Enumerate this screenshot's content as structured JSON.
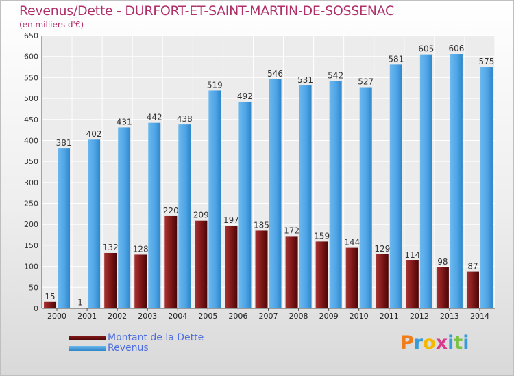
{
  "title": "Revenus/Dette - DURFORT-ET-SAINT-MARTIN-DE-SOSSENAC",
  "subtitle": "(en milliers d'€)",
  "colors": {
    "title": "#b0306a",
    "debt_series": "#7b1616",
    "revenue_series": "#4fa5e6",
    "legend_text": "#4f6fe0"
  },
  "legend": [
    {
      "label": "Montant de la Dette",
      "color": "#6b0f0f"
    },
    {
      "label": "Revenus",
      "color": "#4fa5e6"
    }
  ],
  "logo": {
    "letters": [
      "P",
      "r",
      "o",
      "x",
      "i",
      "t",
      "i"
    ],
    "colors": [
      "#f07d1a",
      "#3a9bd9",
      "#f5b800",
      "#d93b8a",
      "#3a9bd9",
      "#7cc242",
      "#3a9bd9"
    ]
  },
  "chart_data": {
    "type": "bar",
    "categories": [
      "2000",
      "2001",
      "2002",
      "2003",
      "2004",
      "2005",
      "2006",
      "2007",
      "2008",
      "2009",
      "2010",
      "2011",
      "2012",
      "2013",
      "2014"
    ],
    "series": [
      {
        "name": "Montant de la Dette",
        "values": [
          15,
          1,
          132,
          128,
          220,
          209,
          197,
          185,
          172,
          159,
          144,
          129,
          114,
          98,
          87
        ]
      },
      {
        "name": "Revenus",
        "values": [
          381,
          402,
          431,
          442,
          438,
          519,
          492,
          546,
          531,
          542,
          527,
          581,
          605,
          606,
          575
        ]
      }
    ],
    "yticks": [
      "0",
      "50",
      "100",
      "150",
      "200",
      "250",
      "300",
      "350",
      "400",
      "450",
      "500",
      "550",
      "600",
      "650"
    ],
    "ylim": [
      0,
      650
    ],
    "grid": true,
    "legend_position": "bottom-left"
  }
}
